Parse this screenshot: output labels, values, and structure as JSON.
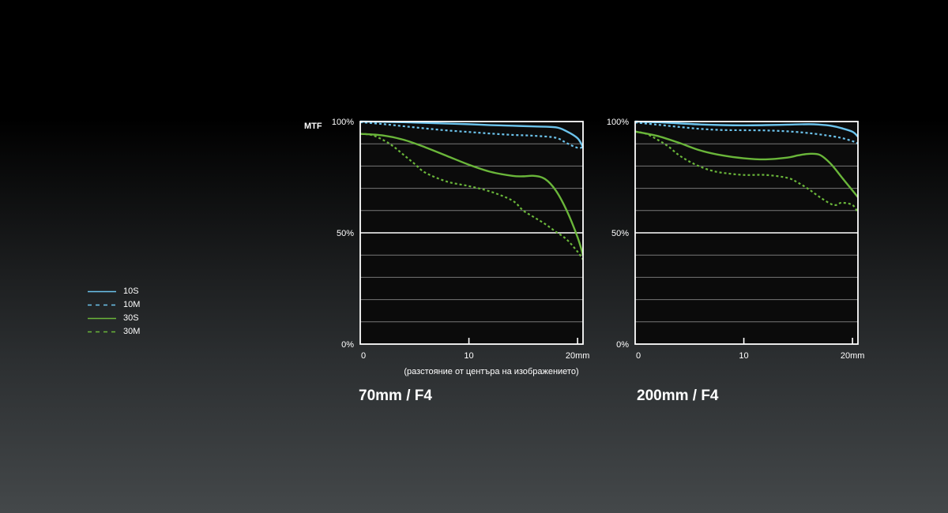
{
  "colors": {
    "s10": "#6cc3ec",
    "m10": "#6cc3ec",
    "s30": "#6ab63a",
    "m30": "#6ab63a"
  },
  "legend": [
    {
      "label": "10S",
      "color": "#6cc3ec",
      "dash": false
    },
    {
      "label": "10M",
      "color": "#6cc3ec",
      "dash": true
    },
    {
      "label": "30S",
      "color": "#6ab63a",
      "dash": false
    },
    {
      "label": "30M",
      "color": "#6ab63a",
      "dash": true
    }
  ],
  "ylabel": "MTF",
  "xlabel": "(разстояние от центъра на изображението)",
  "chart_data": [
    {
      "type": "line",
      "title": "70mm / F4",
      "xlim": [
        0,
        20.5
      ],
      "ylim": [
        0,
        100
      ],
      "yticks": [
        {
          "value": 0,
          "label": "0%"
        },
        {
          "value": 50,
          "label": "50%"
        },
        {
          "value": 100,
          "label": "100%"
        }
      ],
      "xticks": [
        {
          "value": 0,
          "label": "0"
        },
        {
          "value": 10,
          "label": "10"
        },
        {
          "value": 20,
          "label": "20mm"
        }
      ],
      "grid": true,
      "series": [
        {
          "name": "10S",
          "dash": false,
          "color": "#6cc3ec",
          "x": [
            0,
            2,
            4,
            6,
            8,
            10,
            12,
            14,
            16,
            18,
            19,
            20,
            20.5
          ],
          "y": [
            100,
            99.9,
            99.7,
            99.4,
            99.1,
            98.8,
            98.4,
            98.1,
            97.8,
            97.4,
            95.6,
            92.5,
            88.5
          ]
        },
        {
          "name": "10M",
          "dash": true,
          "color": "#6cc3ec",
          "x": [
            0,
            2,
            4,
            6,
            8,
            10,
            12,
            14,
            16,
            18,
            19,
            20,
            20.5
          ],
          "y": [
            99.7,
            98.9,
            97.9,
            96.9,
            96.0,
            95.3,
            94.6,
            94.0,
            93.6,
            92.7,
            90.3,
            88.2,
            88.5
          ]
        },
        {
          "name": "30S",
          "dash": false,
          "color": "#6ab63a",
          "x": [
            0,
            2,
            4,
            6,
            8,
            10,
            12,
            14,
            15,
            16,
            17,
            18,
            19,
            20,
            20.5
          ],
          "y": [
            94.5,
            93.8,
            91.8,
            88.4,
            84.5,
            80.6,
            77.4,
            75.6,
            75.4,
            75.6,
            74.2,
            69.0,
            60.0,
            48.0,
            40.0
          ]
        },
        {
          "name": "30M",
          "dash": true,
          "color": "#6ab63a",
          "x": [
            0,
            1,
            2,
            3,
            4,
            5,
            6,
            8,
            10,
            12,
            14,
            15,
            16,
            17,
            18,
            19,
            20,
            20.5
          ],
          "y": [
            94.5,
            94.0,
            92.0,
            89.0,
            85.0,
            81.0,
            77.0,
            73.0,
            71.0,
            68.5,
            64.5,
            60.0,
            57.0,
            54.0,
            50.5,
            47.0,
            41.5,
            38.0
          ]
        }
      ]
    },
    {
      "type": "line",
      "title": "200mm / F4",
      "xlim": [
        0,
        20.5
      ],
      "ylim": [
        0,
        100
      ],
      "yticks": [
        {
          "value": 0,
          "label": "0%"
        },
        {
          "value": 50,
          "label": "50%"
        },
        {
          "value": 100,
          "label": "100%"
        }
      ],
      "xticks": [
        {
          "value": 0,
          "label": "0"
        },
        {
          "value": 10,
          "label": "10"
        },
        {
          "value": 20,
          "label": "20mm"
        }
      ],
      "grid": true,
      "series": [
        {
          "name": "10S",
          "dash": false,
          "color": "#6cc3ec",
          "x": [
            0,
            2,
            4,
            6,
            8,
            10,
            12,
            14,
            16,
            17,
            18,
            19,
            20,
            20.5
          ],
          "y": [
            100,
            99.7,
            99.2,
            98.7,
            98.4,
            98.3,
            98.4,
            98.6,
            98.8,
            98.6,
            98.1,
            97.0,
            95.4,
            93.2
          ]
        },
        {
          "name": "10M",
          "dash": true,
          "color": "#6cc3ec",
          "x": [
            0,
            2,
            4,
            6,
            8,
            10,
            12,
            14,
            16,
            18,
            19,
            20,
            20.5
          ],
          "y": [
            99.6,
            98.6,
            97.6,
            96.7,
            96.2,
            96.1,
            96.0,
            95.6,
            94.8,
            93.5,
            92.6,
            91.2,
            90.1
          ]
        },
        {
          "name": "30S",
          "dash": false,
          "color": "#6ab63a",
          "x": [
            0,
            2,
            4,
            6,
            8,
            10,
            12,
            14,
            15,
            16,
            17,
            18,
            19,
            20,
            20.5
          ],
          "y": [
            95.5,
            93.6,
            90.5,
            87.0,
            84.8,
            83.5,
            83.0,
            83.8,
            84.8,
            85.5,
            85.0,
            81.0,
            75.0,
            69.0,
            66.0
          ]
        },
        {
          "name": "30M",
          "dash": true,
          "color": "#6ab63a",
          "x": [
            0,
            1,
            2,
            3,
            4,
            5,
            6,
            7,
            8,
            10,
            12,
            14,
            15,
            16,
            17,
            18,
            18.5,
            19,
            20,
            20.5
          ],
          "y": [
            95.5,
            94.5,
            92.0,
            89.0,
            85.0,
            82.0,
            79.7,
            78.0,
            77.0,
            76.0,
            76.0,
            74.7,
            72.5,
            69.5,
            66.0,
            63.0,
            62.5,
            63.5,
            62.5,
            59.0
          ]
        }
      ]
    }
  ]
}
